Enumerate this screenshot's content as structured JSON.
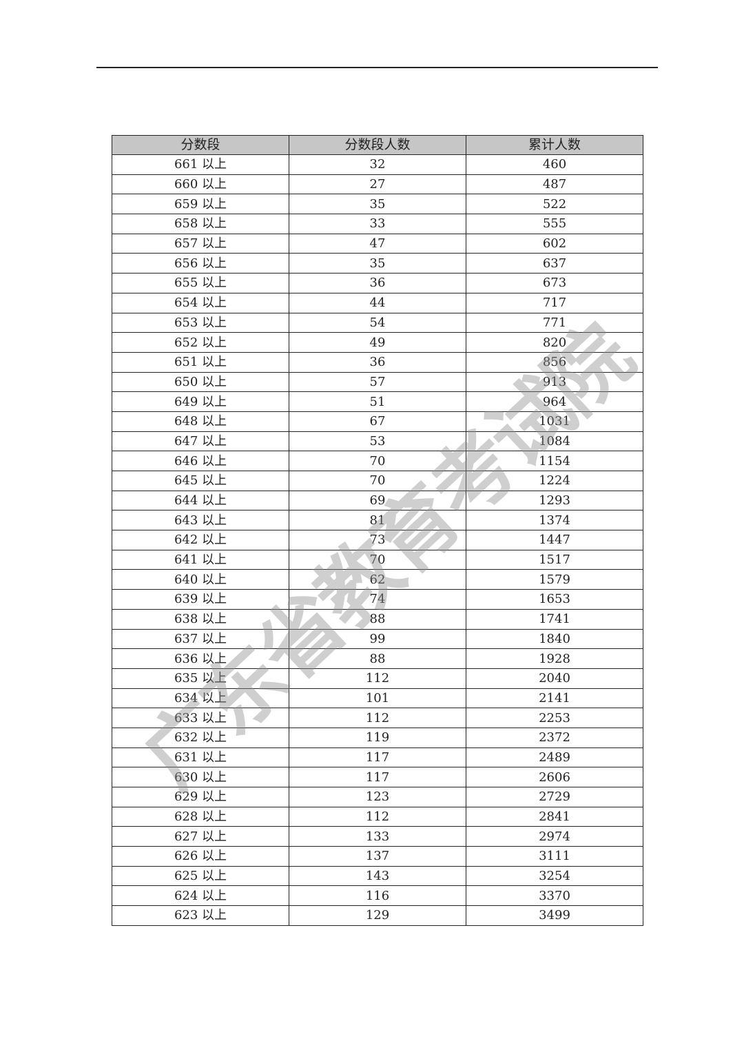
{
  "table": {
    "headers": [
      "分数段",
      "分数段人数",
      "累计人数"
    ],
    "rows": [
      [
        "661 以上",
        "32",
        "460"
      ],
      [
        "660 以上",
        "27",
        "487"
      ],
      [
        "659 以上",
        "35",
        "522"
      ],
      [
        "658 以上",
        "33",
        "555"
      ],
      [
        "657 以上",
        "47",
        "602"
      ],
      [
        "656 以上",
        "35",
        "637"
      ],
      [
        "655 以上",
        "36",
        "673"
      ],
      [
        "654 以上",
        "44",
        "717"
      ],
      [
        "653 以上",
        "54",
        "771"
      ],
      [
        "652 以上",
        "49",
        "820"
      ],
      [
        "651 以上",
        "36",
        "856"
      ],
      [
        "650 以上",
        "57",
        "913"
      ],
      [
        "649 以上",
        "51",
        "964"
      ],
      [
        "648 以上",
        "67",
        "1031"
      ],
      [
        "647 以上",
        "53",
        "1084"
      ],
      [
        "646 以上",
        "70",
        "1154"
      ],
      [
        "645 以上",
        "70",
        "1224"
      ],
      [
        "644 以上",
        "69",
        "1293"
      ],
      [
        "643 以上",
        "81",
        "1374"
      ],
      [
        "642 以上",
        "73",
        "1447"
      ],
      [
        "641 以上",
        "70",
        "1517"
      ],
      [
        "640 以上",
        "62",
        "1579"
      ],
      [
        "639 以上",
        "74",
        "1653"
      ],
      [
        "638 以上",
        "88",
        "1741"
      ],
      [
        "637 以上",
        "99",
        "1840"
      ],
      [
        "636 以上",
        "88",
        "1928"
      ],
      [
        "635 以上",
        "112",
        "2040"
      ],
      [
        "634 以上",
        "101",
        "2141"
      ],
      [
        "633 以上",
        "112",
        "2253"
      ],
      [
        "632 以上",
        "119",
        "2372"
      ],
      [
        "631 以上",
        "117",
        "2489"
      ],
      [
        "630 以上",
        "117",
        "2606"
      ],
      [
        "629 以上",
        "123",
        "2729"
      ],
      [
        "628 以上",
        "112",
        "2841"
      ],
      [
        "627 以上",
        "133",
        "2974"
      ],
      [
        "626 以上",
        "137",
        "3111"
      ],
      [
        "625 以上",
        "143",
        "3254"
      ],
      [
        "624 以上",
        "116",
        "3370"
      ],
      [
        "623 以上",
        "129",
        "3499"
      ]
    ]
  },
  "watermark": "广东省教育考试院",
  "colors": {
    "header_bg": "#c6c6c6",
    "watermark": "#8c8c8c"
  }
}
